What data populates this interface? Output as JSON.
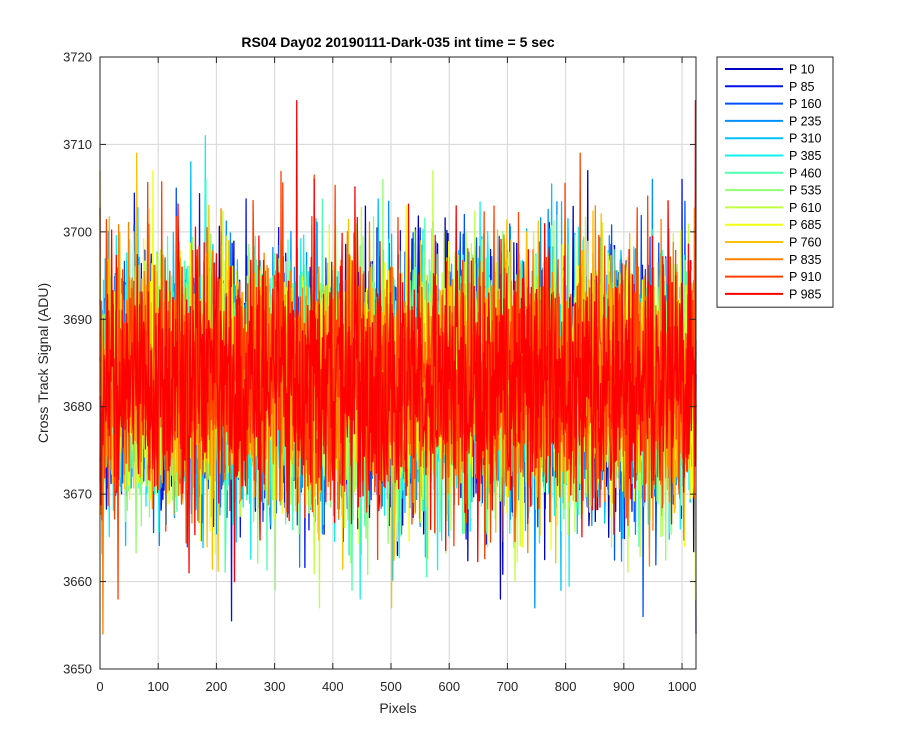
{
  "chart_data": {
    "type": "line",
    "title": "RS04 Day02 20190111-Dark-035 int time = 5 sec",
    "xlabel": "Pixels",
    "ylabel": "Cross Track Signal (ADU)",
    "xlim": [
      0,
      1024
    ],
    "ylim": [
      3650,
      3720
    ],
    "xticks": [
      0,
      100,
      200,
      300,
      400,
      500,
      600,
      700,
      800,
      900,
      1000
    ],
    "yticks": [
      3650,
      3660,
      3670,
      3680,
      3690,
      3700,
      3710,
      3720
    ],
    "grid": true,
    "legend_position": "outside-top-right",
    "series": [
      {
        "name": "P 10",
        "color": "#0000bf",
        "mean": 3683,
        "spread": 7.5,
        "min": 3658,
        "max": 3707
      },
      {
        "name": "P 85",
        "color": "#0010ee",
        "mean": 3683,
        "spread": 7.5,
        "min": 3654,
        "max": 3706
      },
      {
        "name": "P 160",
        "color": "#0050ff",
        "mean": 3683,
        "spread": 7.5,
        "min": 3656,
        "max": 3705
      },
      {
        "name": "P 235",
        "color": "#0090ff",
        "mean": 3683,
        "spread": 7.5,
        "min": 3657,
        "max": 3706
      },
      {
        "name": "P 310",
        "color": "#00c0ff",
        "mean": 3683,
        "spread": 7.5,
        "min": 3659,
        "max": 3708
      },
      {
        "name": "P 385",
        "color": "#10f0ef",
        "mean": 3683,
        "spread": 7.5,
        "min": 3658,
        "max": 3711
      },
      {
        "name": "P 460",
        "color": "#50ffaf",
        "mean": 3683,
        "spread": 7.5,
        "min": 3659,
        "max": 3706
      },
      {
        "name": "P 535",
        "color": "#90ff70",
        "mean": 3683,
        "spread": 7.5,
        "min": 3659,
        "max": 3706
      },
      {
        "name": "P 610",
        "color": "#c0ff40",
        "mean": 3683,
        "spread": 7.5,
        "min": 3657,
        "max": 3707
      },
      {
        "name": "P 685",
        "color": "#f0ff10",
        "mean": 3683,
        "spread": 7.5,
        "min": 3658,
        "max": 3707
      },
      {
        "name": "P 760",
        "color": "#ffc000",
        "mean": 3683,
        "spread": 7.5,
        "min": 3657,
        "max": 3709
      },
      {
        "name": "P 835",
        "color": "#ff8000",
        "mean": 3683,
        "spread": 7.5,
        "min": 3654,
        "max": 3707
      },
      {
        "name": "P 910",
        "color": "#ff4000",
        "mean": 3683,
        "spread": 7.5,
        "min": 3658,
        "max": 3709
      },
      {
        "name": "P 985",
        "color": "#ff0000",
        "mean": 3683,
        "spread": 7.5,
        "min": 3660,
        "max": 3715
      }
    ]
  }
}
